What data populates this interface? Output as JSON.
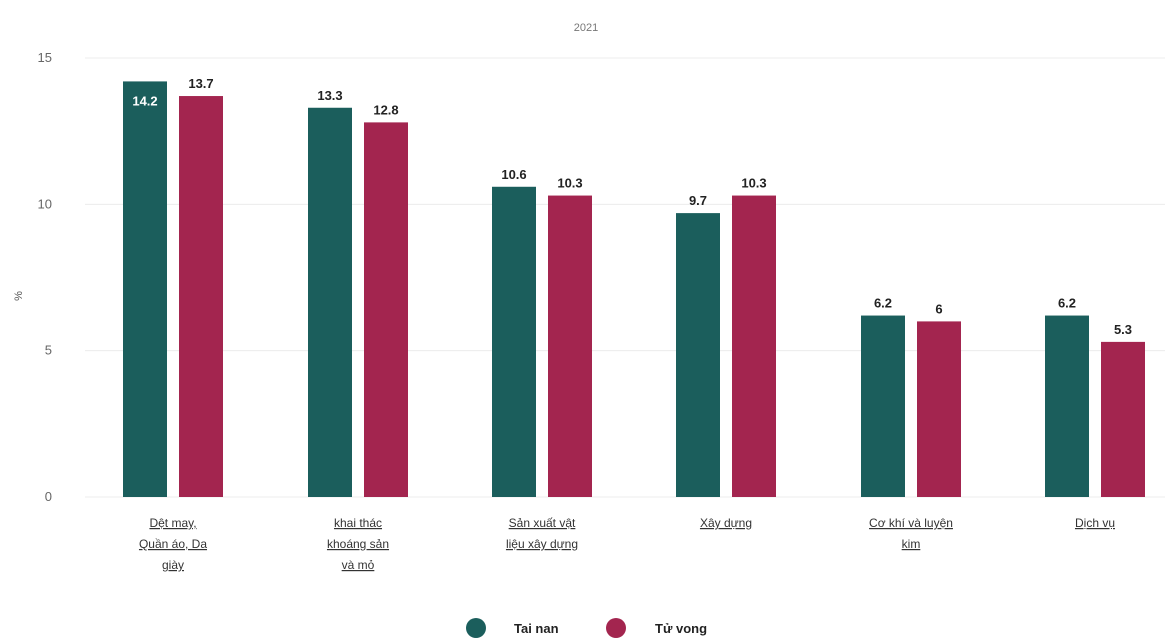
{
  "chart_data": {
    "type": "bar",
    "subtitle": "2021",
    "ylabel": "%",
    "xlabel": "",
    "ylim": [
      0,
      15
    ],
    "yticks": [
      0,
      5,
      10,
      15
    ],
    "grid": true,
    "legend_position": "bottom-center",
    "categories": [
      [
        "Dệt may,",
        "Quần áo, Da",
        "giày"
      ],
      [
        "khai thác",
        "khoáng sản",
        "và mỏ"
      ],
      [
        "Sản xuất vật",
        "liệu xây dựng"
      ],
      [
        "Xây dựng"
      ],
      [
        "Cơ khí và luyện",
        "kim"
      ],
      [
        "Dịch vụ"
      ]
    ],
    "series": [
      {
        "name": "Tai nan",
        "color": "#1b5e5c",
        "values": [
          14.2,
          13.3,
          10.6,
          9.7,
          6.2,
          6.2
        ]
      },
      {
        "name": "Tử vong",
        "color": "#a3254f",
        "values": [
          13.7,
          12.8,
          10.3,
          10.3,
          6,
          5.3
        ]
      }
    ]
  }
}
